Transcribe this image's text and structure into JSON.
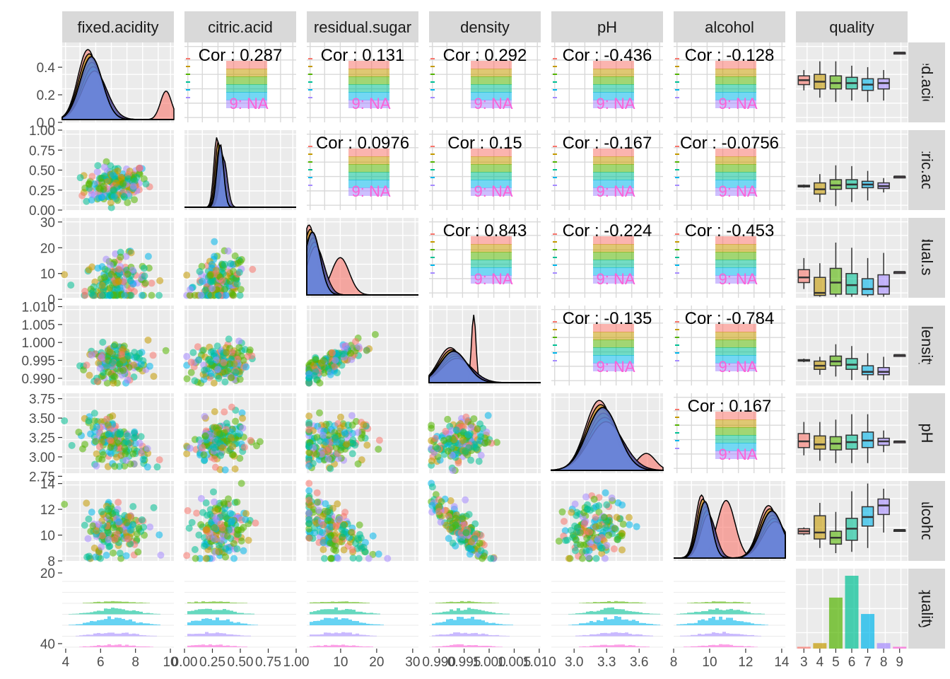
{
  "chart_data": {
    "type": "scatterplot-matrix",
    "variables": [
      "fixed.acidity",
      "citric.acid",
      "residual.sugar",
      "density",
      "pH",
      "alcohol",
      "quality"
    ],
    "quality_levels": [
      "3",
      "4",
      "5",
      "6",
      "7",
      "8",
      "9"
    ],
    "quality_colors": {
      "3": "#F8766D",
      "4": "#C49A00",
      "5": "#53B400",
      "6": "#00C094",
      "7": "#00B6EB",
      "8": "#A58AFF",
      "9": "#FB61D7"
    },
    "group_na_label": "9: NA",
    "correlations": [
      {
        "row": "fixed.acidity",
        "col": "citric.acid",
        "label": "Cor : 0.287"
      },
      {
        "row": "fixed.acidity",
        "col": "residual.sugar",
        "label": "Cor : 0.131"
      },
      {
        "row": "fixed.acidity",
        "col": "density",
        "label": "Cor : 0.292"
      },
      {
        "row": "fixed.acidity",
        "col": "pH",
        "label": "Cor : -0.436"
      },
      {
        "row": "fixed.acidity",
        "col": "alcohol",
        "label": "Cor : -0.128"
      },
      {
        "row": "citric.acid",
        "col": "residual.sugar",
        "label": "Cor : 0.0976"
      },
      {
        "row": "citric.acid",
        "col": "density",
        "label": "Cor : 0.15"
      },
      {
        "row": "citric.acid",
        "col": "pH",
        "label": "Cor : -0.167"
      },
      {
        "row": "citric.acid",
        "col": "alcohol",
        "label": "Cor : -0.0756"
      },
      {
        "row": "residual.sugar",
        "col": "density",
        "label": "Cor : 0.843"
      },
      {
        "row": "residual.sugar",
        "col": "pH",
        "label": "Cor : -0.224"
      },
      {
        "row": "residual.sugar",
        "col": "alcohol",
        "label": "Cor : -0.453"
      },
      {
        "row": "density",
        "col": "pH",
        "label": "Cor : -0.135"
      },
      {
        "row": "density",
        "col": "alcohol",
        "label": "Cor : -0.784"
      },
      {
        "row": "pH",
        "col": "alcohol",
        "label": "Cor : 0.167"
      }
    ],
    "x_ticks": {
      "fixed.acidity": [
        "4",
        "6",
        "8",
        "10"
      ],
      "citric.acid": [
        "0.00",
        "0.25",
        "0.50",
        "0.75",
        "1.00"
      ],
      "residual.sugar": [
        "10",
        "20",
        "30"
      ],
      "density": [
        "0.990",
        "0.995",
        "1.000",
        "1.005",
        "1.010"
      ],
      "pH": [
        "3.0",
        "3.3",
        "3.6"
      ],
      "alcohol": [
        "8",
        "10",
        "12",
        "14"
      ],
      "quality": [
        "3",
        "4",
        "5",
        "6",
        "7",
        "8",
        "9"
      ]
    },
    "y_ticks": {
      "fixed.acidity": [
        "0.0",
        "0.2",
        "0.4"
      ],
      "citric.acid": [
        "0.00",
        "0.25",
        "0.50",
        "0.75",
        "1.00"
      ],
      "residual.sugar": [
        "0",
        "10",
        "20",
        "30"
      ],
      "density": [
        "0.990",
        "0.995",
        "1.000",
        "1.005",
        "1.010"
      ],
      "pH": [
        "2.75",
        "3.00",
        "3.25",
        "3.50",
        "3.75"
      ],
      "alcohol": [
        "8",
        "10",
        "12",
        "14"
      ],
      "quality": [
        "20",
        "40"
      ]
    },
    "ranges": {
      "fixed.acidity": [
        3.8,
        10.2
      ],
      "citric.acid": [
        0,
        1
      ],
      "residual.sugar": [
        0.6,
        31.6
      ],
      "density": [
        0.988,
        1.0103
      ],
      "pH": [
        2.79,
        3.82
      ],
      "alcohol": [
        8,
        14.2
      ],
      "quality": [
        2.5,
        9.5
      ]
    },
    "quality_counts": [
      {
        "quality": "3",
        "count": 1
      },
      {
        "quality": "4",
        "count": 3
      },
      {
        "quality": "5",
        "count": 28
      },
      {
        "quality": "6",
        "count": 40
      },
      {
        "quality": "7",
        "count": 19
      },
      {
        "quality": "8",
        "count": 3
      },
      {
        "quality": "9",
        "count": 1
      }
    ],
    "boxplots": {
      "fixed.acidity": [
        {
          "q": "3",
          "min": 0.22,
          "q1": 0.26,
          "median": 0.29,
          "q3": 0.32,
          "max": 0.36
        },
        {
          "q": "4",
          "min": 0.17,
          "q1": 0.23,
          "median": 0.28,
          "q3": 0.33,
          "max": 0.42
        },
        {
          "q": "5",
          "min": 0.14,
          "q1": 0.23,
          "median": 0.27,
          "q3": 0.32,
          "max": 0.42
        },
        {
          "q": "6",
          "min": 0.15,
          "q1": 0.23,
          "median": 0.27,
          "q3": 0.31,
          "max": 0.39
        },
        {
          "q": "7",
          "min": 0.14,
          "q1": 0.22,
          "median": 0.26,
          "q3": 0.3,
          "max": 0.38
        },
        {
          "q": "8",
          "min": 0.15,
          "q1": 0.23,
          "median": 0.27,
          "q3": 0.3,
          "max": 0.36
        },
        {
          "q": "9",
          "min": 0.48,
          "q1": 0.48,
          "median": 0.48,
          "q3": 0.48,
          "max": 0.48
        }
      ],
      "citric.acid": [
        {
          "q": "3",
          "min": 0.28,
          "q1": 0.29,
          "median": 0.3,
          "q3": 0.31,
          "max": 0.32
        },
        {
          "q": "4",
          "min": 0.1,
          "q1": 0.2,
          "median": 0.26,
          "q3": 0.34,
          "max": 0.45
        },
        {
          "q": "5",
          "min": 0.05,
          "q1": 0.26,
          "median": 0.31,
          "q3": 0.38,
          "max": 0.56
        },
        {
          "q": "6",
          "min": 0.1,
          "q1": 0.27,
          "median": 0.32,
          "q3": 0.38,
          "max": 0.55
        },
        {
          "q": "7",
          "min": 0.12,
          "q1": 0.28,
          "median": 0.32,
          "q3": 0.36,
          "max": 0.49
        },
        {
          "q": "8",
          "min": 0.22,
          "q1": 0.27,
          "median": 0.3,
          "q3": 0.34,
          "max": 0.4
        },
        {
          "q": "9",
          "min": 0.42,
          "q1": 0.42,
          "median": 0.42,
          "q3": 0.42,
          "max": 0.42
        }
      ],
      "residual.sugar": [
        {
          "q": "3",
          "min": 4,
          "q1": 6.5,
          "median": 8.5,
          "q3": 11.5,
          "max": 16
        },
        {
          "q": "4",
          "min": 1,
          "q1": 1.5,
          "median": 2.5,
          "q3": 8.5,
          "max": 14
        },
        {
          "q": "5",
          "min": 1,
          "q1": 2.0,
          "median": 6.5,
          "q3": 12.0,
          "max": 22
        },
        {
          "q": "6",
          "min": 1,
          "q1": 2.0,
          "median": 5.5,
          "q3": 10.0,
          "max": 20
        },
        {
          "q": "7",
          "min": 1,
          "q1": 1.8,
          "median": 4.0,
          "q3": 8.0,
          "max": 16
        },
        {
          "q": "8",
          "min": 1,
          "q1": 2.0,
          "median": 5.0,
          "q3": 9.5,
          "max": 18
        },
        {
          "q": "9",
          "min": 10.6,
          "q1": 10.6,
          "median": 10.6,
          "q3": 10.6,
          "max": 10.6
        }
      ],
      "density": [
        {
          "q": "3",
          "min": 0.9945,
          "q1": 0.9948,
          "median": 0.995,
          "q3": 0.9952,
          "max": 0.9955
        },
        {
          "q": "4",
          "min": 0.991,
          "q1": 0.9925,
          "median": 0.9935,
          "q3": 0.9948,
          "max": 0.996
        },
        {
          "q": "5",
          "min": 0.9905,
          "q1": 0.9935,
          "median": 0.9947,
          "q3": 0.9962,
          "max": 0.9995
        },
        {
          "q": "6",
          "min": 0.9895,
          "q1": 0.9925,
          "median": 0.9938,
          "q3": 0.9955,
          "max": 0.999
        },
        {
          "q": "7",
          "min": 0.9895,
          "q1": 0.991,
          "median": 0.9918,
          "q3": 0.9935,
          "max": 0.997
        },
        {
          "q": "8",
          "min": 0.9895,
          "q1": 0.991,
          "median": 0.9918,
          "q3": 0.993,
          "max": 0.996
        },
        {
          "q": "9",
          "min": 0.9965,
          "q1": 0.9965,
          "median": 0.9965,
          "q3": 0.9965,
          "max": 0.9965
        }
      ],
      "pH": [
        {
          "q": "3",
          "min": 3.02,
          "q1": 3.12,
          "median": 3.2,
          "q3": 3.3,
          "max": 3.45
        },
        {
          "q": "4",
          "min": 2.95,
          "q1": 3.1,
          "median": 3.16,
          "q3": 3.27,
          "max": 3.45
        },
        {
          "q": "5",
          "min": 2.92,
          "q1": 3.09,
          "median": 3.17,
          "q3": 3.26,
          "max": 3.48
        },
        {
          "q": "6",
          "min": 2.92,
          "q1": 3.1,
          "median": 3.19,
          "q3": 3.28,
          "max": 3.55
        },
        {
          "q": "7",
          "min": 2.92,
          "q1": 3.12,
          "median": 3.21,
          "q3": 3.32,
          "max": 3.55
        },
        {
          "q": "8",
          "min": 3.06,
          "q1": 3.15,
          "median": 3.2,
          "q3": 3.24,
          "max": 3.34
        },
        {
          "q": "9",
          "min": 3.2,
          "q1": 3.2,
          "median": 3.2,
          "q3": 3.2,
          "max": 3.2
        }
      ],
      "alcohol": [
        {
          "q": "3",
          "min": 10.0,
          "q1": 10.1,
          "median": 10.3,
          "q3": 10.5,
          "max": 10.6
        },
        {
          "q": "4",
          "min": 9.0,
          "q1": 9.7,
          "median": 10.2,
          "q3": 11.5,
          "max": 12.5
        },
        {
          "q": "5",
          "min": 8.6,
          "q1": 9.3,
          "median": 9.8,
          "q3": 10.3,
          "max": 11.8
        },
        {
          "q": "6",
          "min": 8.7,
          "q1": 9.6,
          "median": 10.5,
          "q3": 11.3,
          "max": 13.4
        },
        {
          "q": "7",
          "min": 9.0,
          "q1": 10.7,
          "median": 11.4,
          "q3": 12.2,
          "max": 14.0
        },
        {
          "q": "8",
          "min": 10.2,
          "q1": 11.6,
          "median": 12.3,
          "q3": 12.8,
          "max": 13.6
        },
        {
          "q": "9",
          "min": 10.4,
          "q1": 10.4,
          "median": 10.4,
          "q3": 10.4,
          "max": 10.4
        }
      ]
    },
    "grid": true,
    "legend": "none"
  }
}
